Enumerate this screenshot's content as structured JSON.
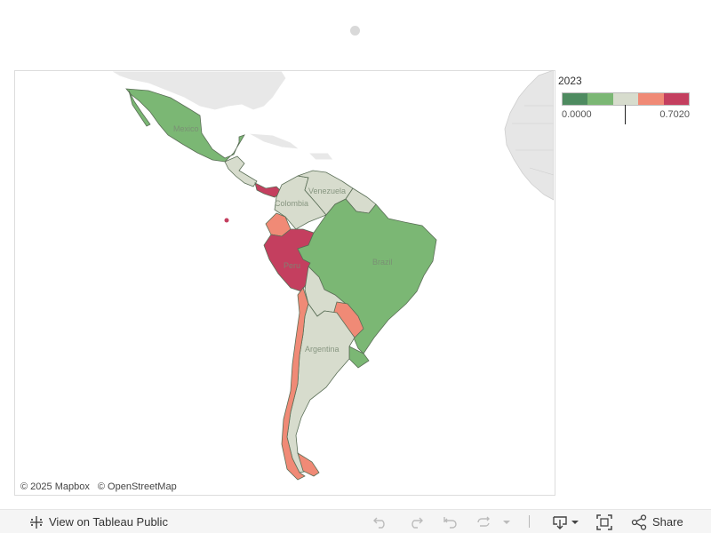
{
  "legend": {
    "title": "2023",
    "min_label": "0.0000",
    "max_label": "0.7020",
    "marker_value": 0.35,
    "colors": [
      "#4e8b60",
      "#7bb774",
      "#d7dccd",
      "#f08a76",
      "#c43f5f"
    ]
  },
  "map": {
    "labels": {
      "mexico": "Mexico",
      "venezuela": "Venezuela",
      "colombia": "Colombia",
      "brazil": "Brazil",
      "peru": "Peru",
      "argentina": "Argentina"
    },
    "colors": {
      "dark_green": "#4e8b60",
      "green": "#7bb774",
      "neutral": "#d7dccd",
      "salmon": "#f08a76",
      "crimson": "#c43f5f",
      "land_gray": "#e6e6e6"
    }
  },
  "attribution": {
    "mapbox": "© 2025 Mapbox",
    "osm": "© OpenStreetMap"
  },
  "toolbar": {
    "view_label": "View on Tableau Public",
    "share_label": "Share"
  }
}
